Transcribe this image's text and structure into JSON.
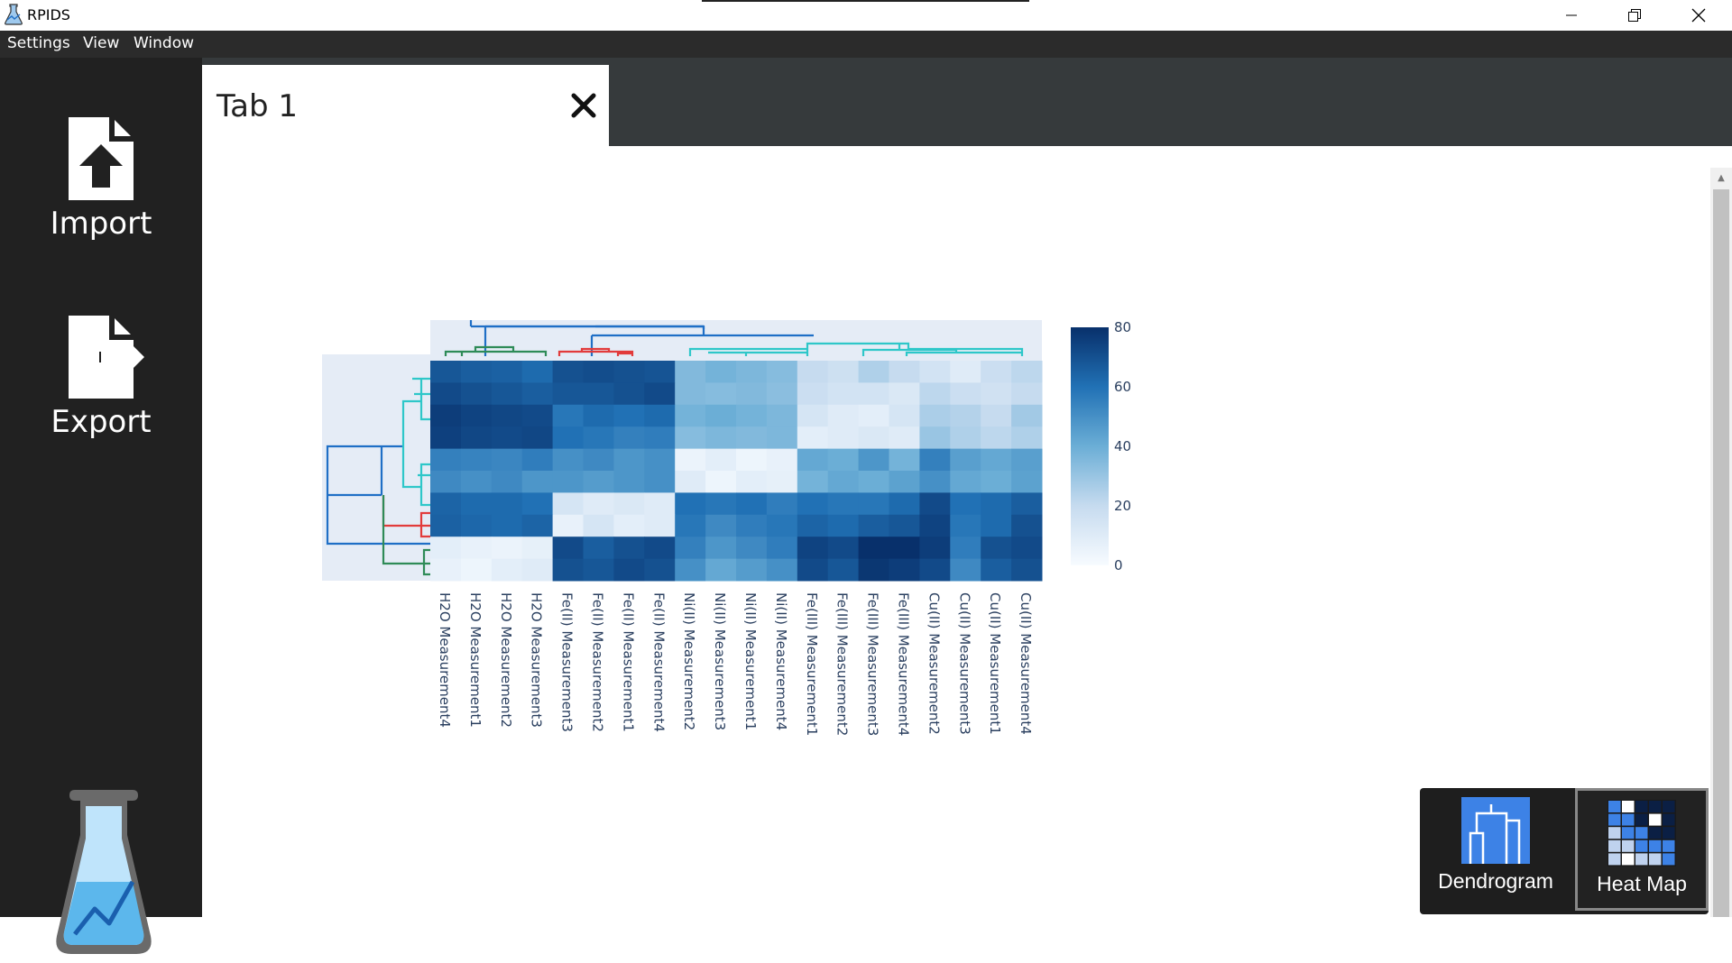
{
  "app": {
    "title": "RPIDS"
  },
  "menu": {
    "items": [
      "Settings",
      "View",
      "Window"
    ]
  },
  "sidebar": {
    "import_label": "Import",
    "export_label": "Export"
  },
  "tabs": [
    {
      "label": "Tab 1"
    }
  ],
  "view_switch": {
    "dendrogram_label": "Dendrogram",
    "heatmap_label": "Heat Map",
    "active": "Heat Map"
  },
  "colors": {
    "accent_dark": "#08306b",
    "heat_low": "#f7fbff",
    "cluster_cyan": "#2ec7c9",
    "cluster_red": "#e23b3b",
    "cluster_green": "#2e8b57",
    "cluster_root": "#1f6fc6"
  },
  "chart_data": {
    "type": "heatmap",
    "columns": [
      "H2O Measurement4",
      "H2O Measurement1",
      "H2O Measurement2",
      "H2O Measurement3",
      "Fe(II) Measurement3",
      "Fe(II) Measurement2",
      "Fe(II) Measurement1",
      "Fe(II) Measurement4",
      "Ni(II) Measurement2",
      "Ni(II) Measurement3",
      "Ni(II) Measurement1",
      "Ni(II) Measurement4",
      "Fe(III) Measurement1",
      "Fe(III) Measurement2",
      "Fe(III) Measurement3",
      "Fe(III) Measurement4",
      "Cu(II) Measurement2",
      "Cu(II) Measurement3",
      "Cu(II) Measurement1",
      "Cu(II) Measurement4"
    ],
    "values": [
      [
        68,
        66,
        65,
        62,
        70,
        71,
        70,
        69,
        35,
        38,
        36,
        34,
        20,
        17,
        25,
        20,
        15,
        10,
        18,
        22
      ],
      [
        72,
        70,
        68,
        66,
        68,
        68,
        70,
        72,
        35,
        34,
        35,
        33,
        18,
        15,
        15,
        12,
        22,
        18,
        16,
        20
      ],
      [
        76,
        74,
        73,
        72,
        58,
        62,
        60,
        62,
        38,
        40,
        38,
        36,
        14,
        10,
        8,
        14,
        26,
        24,
        20,
        28
      ],
      [
        75,
        73,
        72,
        73,
        60,
        58,
        55,
        56,
        34,
        36,
        35,
        36,
        8,
        10,
        12,
        10,
        30,
        25,
        22,
        25
      ],
      [
        55,
        54,
        53,
        56,
        50,
        52,
        48,
        50,
        5,
        8,
        4,
        6,
        42,
        40,
        48,
        38,
        55,
        45,
        42,
        45
      ],
      [
        52,
        50,
        52,
        48,
        48,
        46,
        48,
        50,
        10,
        4,
        8,
        7,
        38,
        42,
        40,
        44,
        50,
        42,
        40,
        44
      ],
      [
        64,
        62,
        62,
        60,
        14,
        10,
        12,
        10,
        60,
        58,
        60,
        56,
        60,
        58,
        58,
        62,
        72,
        60,
        62,
        66
      ],
      [
        65,
        63,
        62,
        64,
        6,
        14,
        8,
        10,
        58,
        52,
        56,
        58,
        64,
        62,
        66,
        68,
        74,
        58,
        62,
        70
      ],
      [
        8,
        6,
        5,
        7,
        72,
        66,
        70,
        72,
        55,
        48,
        52,
        56,
        74,
        72,
        80,
        82,
        76,
        56,
        70,
        72
      ],
      [
        6,
        4,
        8,
        10,
        70,
        68,
        72,
        70,
        50,
        42,
        46,
        50,
        72,
        68,
        78,
        76,
        72,
        52,
        66,
        70
      ]
    ],
    "zlim": [
      0,
      80
    ],
    "colorbar_ticks": [
      0,
      20,
      40,
      60,
      80
    ],
    "colorscale": "Blues",
    "dendrogram_top": true,
    "dendrogram_left": true
  }
}
